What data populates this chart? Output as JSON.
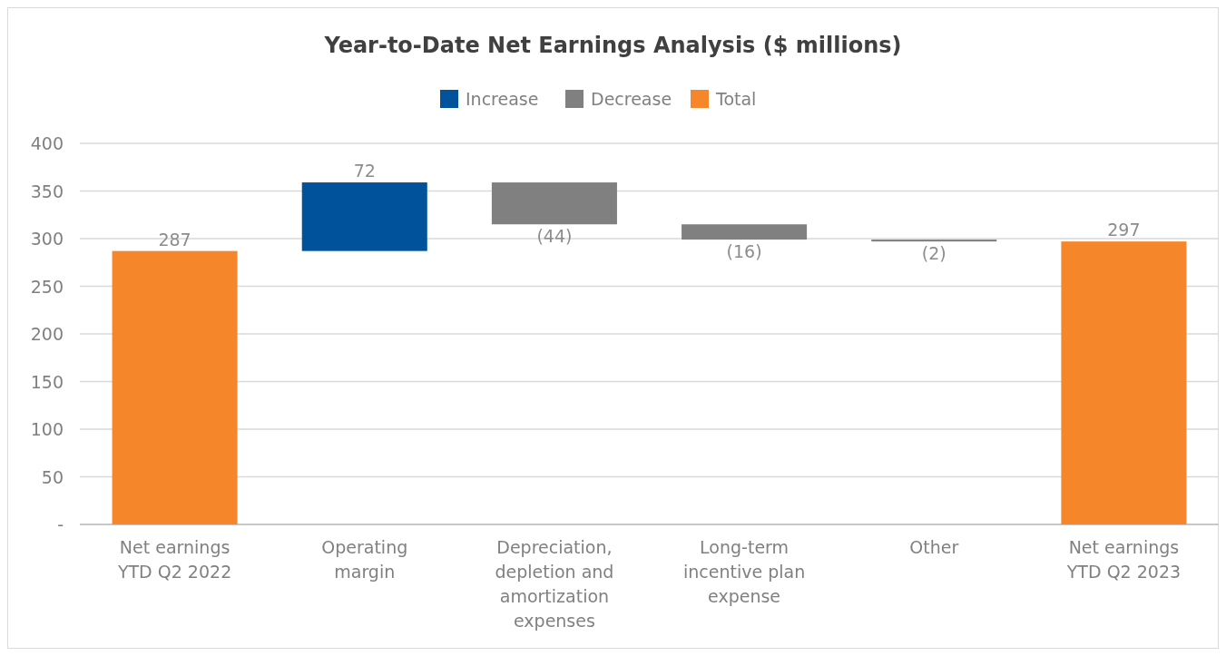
{
  "chart_data": {
    "type": "bar",
    "title": "Year-to-Date Net Earnings Analysis ($ millions)",
    "categories": [
      "Net earnings YTD Q2 2022",
      "Operating margin",
      "Depreciation, depletion and amortization expenses",
      "Long-term incentive plan expense",
      "Other",
      "Net earnings YTD Q2 2023"
    ],
    "series": [
      {
        "name": "Increase",
        "color": "#00539b",
        "values": [
          null,
          72,
          null,
          null,
          null,
          null
        ],
        "base": [
          null,
          287,
          null,
          null,
          null,
          null
        ],
        "value_labels": [
          null,
          "72",
          null,
          null,
          null,
          null
        ]
      },
      {
        "name": "Decrease",
        "color": "#808080",
        "values": [
          null,
          null,
          -44,
          -16,
          -2,
          null
        ],
        "base": [
          null,
          null,
          359,
          315,
          299,
          null
        ],
        "value_labels": [
          null,
          null,
          "(44)",
          "(16)",
          "(2)",
          null
        ]
      },
      {
        "name": "Total",
        "color": "#f5872a",
        "values": [
          287,
          null,
          null,
          null,
          null,
          297
        ],
        "value_labels": [
          "287",
          null,
          null,
          null,
          null,
          "297"
        ]
      }
    ],
    "ylim": [
      0,
      400
    ],
    "yticks": [
      {
        "value": 0,
        "label": "-"
      },
      50,
      100,
      150,
      200,
      250,
      300,
      350,
      400
    ],
    "grid": "y",
    "legend": "top"
  }
}
